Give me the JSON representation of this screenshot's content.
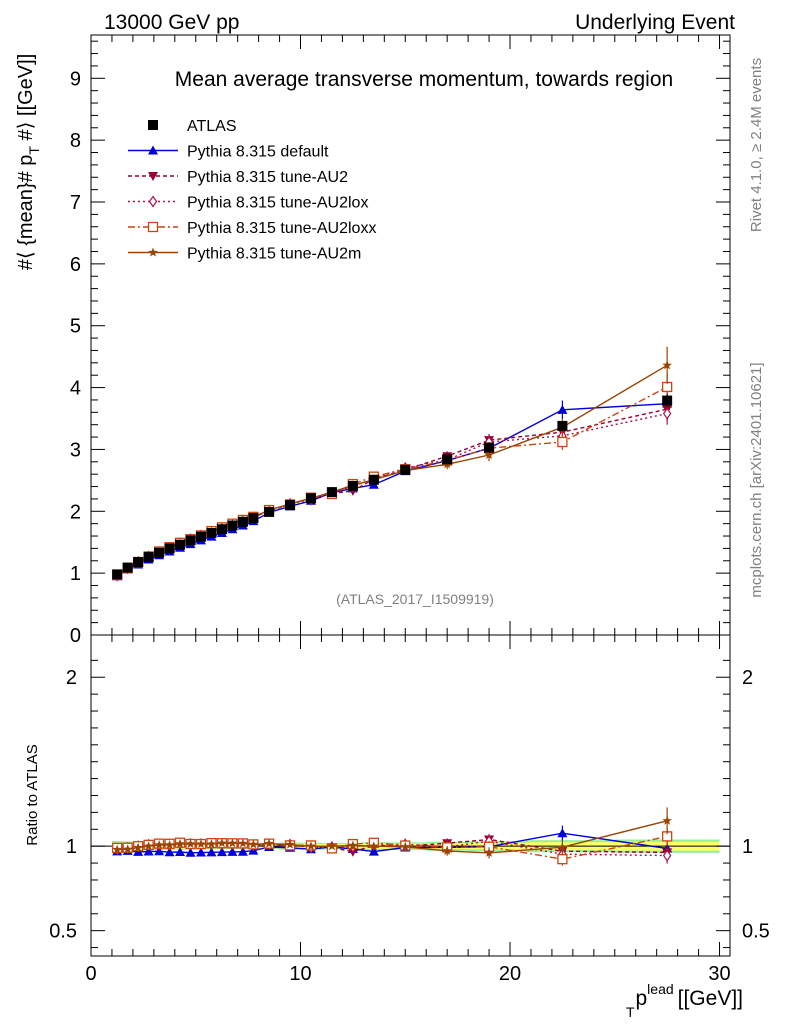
{
  "header": {
    "left": "13000 GeV pp",
    "right": "Underlying Event"
  },
  "side_text": {
    "rivet": "Rivet 4.1.0, ≥ 2.4M events",
    "mcplots": "mcplots.cern.ch [arXiv:2401.10621]"
  },
  "colors": {
    "atlas": "#000000",
    "default": "#0000dd",
    "au2": "#990033",
    "au2lox": "#aa1144",
    "au2loxx": "#cc4411",
    "au2m": "#994400",
    "band_inner": "#ffff66",
    "band_outer": "#99ee99"
  },
  "chart_data": {
    "type": "line",
    "title": "Mean average transverse momentum, towards region",
    "analysis_id": "(ATLAS_2017_I1509919)",
    "xlabel": "p_T^lead [[GeV]]",
    "xlabel_main": "p",
    "xlabel_sub": "T",
    "xlabel_sup": "lead",
    "xlabel_unit": "[[GeV]]",
    "ylabel": "#⟨ {mean}# p_T #⟩ [[GeV]]",
    "ylabel_pre": "#⟨ {mean}# p",
    "ylabel_sub": "T",
    "ylabel_post": " #⟩ [[GeV]]",
    "ratio_ylabel": "Ratio to ATLAS",
    "xlim": [
      0,
      30.5
    ],
    "ylim": [
      0,
      9.7
    ],
    "ratio_ylim": [
      0.35,
      2.25
    ],
    "x_ticks": [
      "0",
      "10",
      "20",
      "30"
    ],
    "y_ticks": [
      "0",
      "1",
      "2",
      "3",
      "4",
      "5",
      "6",
      "7",
      "8",
      "9"
    ],
    "ratio_ticks": [
      "0.5",
      "1",
      "2"
    ],
    "x": [
      1.25,
      1.75,
      2.25,
      2.75,
      3.25,
      3.75,
      4.25,
      4.75,
      5.25,
      5.75,
      6.25,
      6.75,
      7.25,
      7.75,
      8.5,
      9.5,
      10.5,
      11.5,
      12.5,
      13.5,
      15.0,
      17.0,
      19.0,
      22.5,
      27.5
    ],
    "data": {
      "name": "ATLAS",
      "values": [
        0.98,
        1.09,
        1.18,
        1.26,
        1.33,
        1.4,
        1.46,
        1.53,
        1.59,
        1.65,
        1.71,
        1.77,
        1.83,
        1.89,
        1.99,
        2.1,
        2.21,
        2.31,
        2.41,
        2.51,
        2.67,
        2.84,
        3.03,
        3.38,
        3.79
      ],
      "errors": [
        0.02,
        0.02,
        0.02,
        0.02,
        0.02,
        0.02,
        0.02,
        0.02,
        0.02,
        0.02,
        0.02,
        0.02,
        0.02,
        0.02,
        0.02,
        0.03,
        0.03,
        0.03,
        0.03,
        0.04,
        0.04,
        0.05,
        0.06,
        0.08,
        0.1
      ]
    },
    "series": [
      {
        "name": "Pythia 8.315 default",
        "key": "default",
        "marker": "triangle-up",
        "dash": "",
        "values": [
          0.95,
          1.06,
          1.14,
          1.22,
          1.29,
          1.35,
          1.41,
          1.47,
          1.53,
          1.59,
          1.65,
          1.71,
          1.77,
          1.84,
          1.98,
          2.08,
          2.17,
          2.3,
          2.37,
          2.43,
          2.65,
          2.82,
          3.02,
          3.64,
          3.74
        ],
        "errors": [
          0.01,
          0.01,
          0.01,
          0.01,
          0.01,
          0.01,
          0.01,
          0.01,
          0.01,
          0.01,
          0.01,
          0.01,
          0.01,
          0.01,
          0.02,
          0.02,
          0.03,
          0.03,
          0.04,
          0.05,
          0.06,
          0.08,
          0.1,
          0.15,
          0.25
        ]
      },
      {
        "name": "Pythia 8.315 tune-AU2",
        "key": "au2",
        "marker": "triangle-down",
        "dash": "4,3",
        "values": [
          0.96,
          1.08,
          1.18,
          1.26,
          1.33,
          1.41,
          1.47,
          1.54,
          1.6,
          1.67,
          1.73,
          1.79,
          1.85,
          1.91,
          2.0,
          2.12,
          2.21,
          2.29,
          2.33,
          2.52,
          2.67,
          2.89,
          3.15,
          3.28,
          3.65
        ],
        "errors": [
          0.01,
          0.01,
          0.01,
          0.01,
          0.01,
          0.01,
          0.01,
          0.01,
          0.01,
          0.01,
          0.01,
          0.01,
          0.01,
          0.01,
          0.02,
          0.02,
          0.03,
          0.03,
          0.04,
          0.05,
          0.06,
          0.08,
          0.1,
          0.13,
          0.18
        ]
      },
      {
        "name": "Pythia 8.315 tune-AU2lox",
        "key": "au2lox",
        "marker": "diamond-open",
        "dash": "2,3",
        "values": [
          0.96,
          1.08,
          1.18,
          1.27,
          1.34,
          1.41,
          1.48,
          1.55,
          1.61,
          1.67,
          1.73,
          1.79,
          1.85,
          1.9,
          2.01,
          2.12,
          2.19,
          2.3,
          2.4,
          2.53,
          2.7,
          2.83,
          3.12,
          3.22,
          3.58
        ],
        "errors": [
          0.01,
          0.01,
          0.01,
          0.01,
          0.01,
          0.01,
          0.01,
          0.01,
          0.01,
          0.01,
          0.01,
          0.01,
          0.01,
          0.01,
          0.02,
          0.02,
          0.03,
          0.03,
          0.04,
          0.05,
          0.06,
          0.08,
          0.1,
          0.13,
          0.18
        ]
      },
      {
        "name": "Pythia 8.315 tune-AU2loxx",
        "key": "au2loxx",
        "marker": "square-open",
        "dash": "7,3,2,3",
        "values": [
          0.97,
          1.08,
          1.18,
          1.27,
          1.35,
          1.42,
          1.49,
          1.55,
          1.61,
          1.68,
          1.74,
          1.8,
          1.86,
          1.91,
          2.02,
          2.11,
          2.22,
          2.28,
          2.44,
          2.56,
          2.68,
          2.82,
          3.02,
          3.12,
          4.01
        ],
        "errors": [
          0.01,
          0.01,
          0.01,
          0.01,
          0.01,
          0.01,
          0.01,
          0.01,
          0.01,
          0.01,
          0.01,
          0.01,
          0.01,
          0.01,
          0.02,
          0.02,
          0.03,
          0.03,
          0.04,
          0.05,
          0.06,
          0.08,
          0.1,
          0.13,
          0.2
        ]
      },
      {
        "name": "Pythia 8.315 tune-AU2m",
        "key": "au2m",
        "marker": "star",
        "dash": "",
        "values": [
          0.96,
          1.07,
          1.17,
          1.26,
          1.34,
          1.41,
          1.48,
          1.55,
          1.61,
          1.67,
          1.74,
          1.8,
          1.86,
          1.91,
          2.02,
          2.12,
          2.21,
          2.31,
          2.42,
          2.51,
          2.66,
          2.76,
          2.91,
          3.36,
          4.36
        ],
        "errors": [
          0.01,
          0.01,
          0.01,
          0.01,
          0.01,
          0.01,
          0.01,
          0.01,
          0.01,
          0.01,
          0.01,
          0.01,
          0.01,
          0.01,
          0.02,
          0.02,
          0.03,
          0.03,
          0.04,
          0.05,
          0.06,
          0.08,
          0.1,
          0.14,
          0.3
        ]
      }
    ]
  }
}
